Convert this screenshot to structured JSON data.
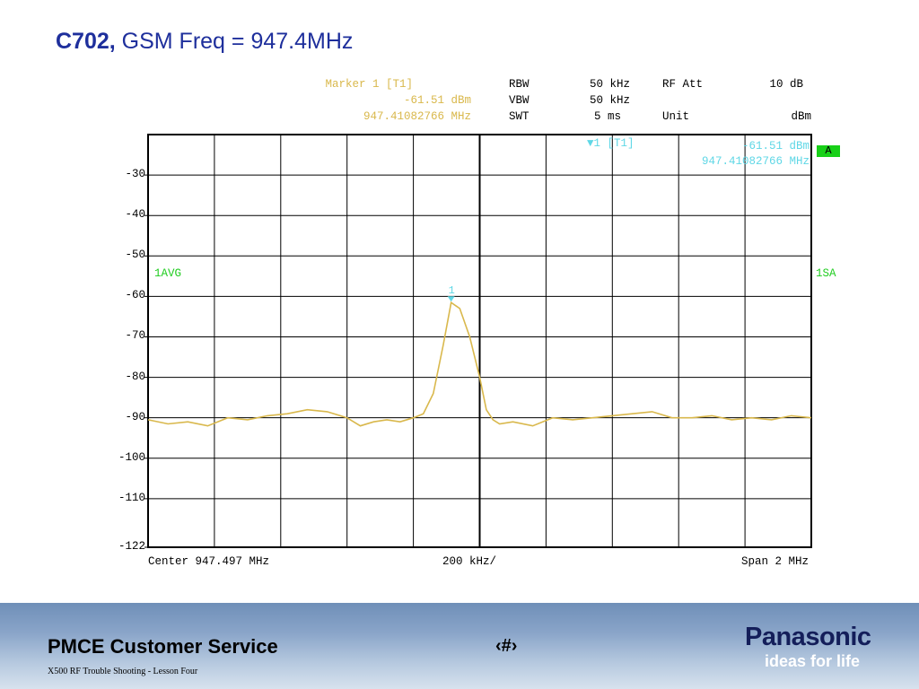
{
  "slide": {
    "title_bold": "C702,",
    "title_rest": " GSM Freq = 947.4MHz",
    "footer_service": "PMCE Customer Service",
    "footer_page": "‹#›",
    "footer_sub": "X500 RF Trouble Shooting  -  Lesson Four",
    "brand": "Panasonic",
    "tagline": "ideas for life"
  },
  "header": {
    "marker_title": "Marker 1 [T1]",
    "marker_level": "-61.51 dBm",
    "marker_freq": "947.41082766 MHz",
    "rbw_label": "RBW",
    "rbw_value": "50 kHz",
    "vbw_label": "VBW",
    "vbw_value": "50 kHz",
    "swt_label": "SWT",
    "swt_value": "5 ms",
    "rfatt_label": "RF Att",
    "rfatt_value": "10 dB",
    "unit_label": "Unit",
    "unit_value": "dBm"
  },
  "overlay": {
    "marker_tag": "1 [T1]",
    "marker_level": "-61.51 dBm",
    "marker_freq": "947.41082766 MHz",
    "a_box": "A",
    "left_note": "1AVG",
    "right_note": "1SA",
    "peak_label": "1"
  },
  "bottom": {
    "center": "Center 947.497 MHz",
    "div": "200 kHz/",
    "span": "Span 2 MHz"
  },
  "colors": {
    "trace": "#d9b84c",
    "marker": "#5fd7e6",
    "note": "#1fcc1f",
    "title": "#1e2f9c"
  },
  "chart_data": {
    "type": "line",
    "title": "",
    "xlabel": "",
    "ylabel": "",
    "xlim": [
      946.497,
      948.497
    ],
    "ylim": [
      -122,
      -20
    ],
    "grid": true,
    "y_ticks": [
      "-30",
      "-40",
      "-50",
      "-60",
      "-70",
      "-80",
      "-90",
      "-100",
      "-110",
      "-122"
    ],
    "y_tick_values": [
      -30,
      -40,
      -50,
      -60,
      -70,
      -80,
      -90,
      -100,
      -110,
      -122
    ],
    "marker": {
      "x": 947.41082766,
      "y": -61.51
    },
    "series": [
      {
        "x": [
          946.497,
          946.557,
          946.617,
          946.677,
          946.737,
          946.797,
          946.857,
          946.917,
          946.977,
          947.037,
          947.097,
          947.137,
          947.177,
          947.217,
          947.257,
          947.297,
          947.327,
          947.357,
          947.387,
          947.411,
          947.437,
          947.467,
          947.497,
          947.517,
          947.537,
          947.557,
          947.597,
          947.657,
          947.717,
          947.777,
          947.837,
          947.897,
          947.957,
          948.017,
          948.077,
          948.137,
          948.197,
          948.257,
          948.317,
          948.377,
          948.437,
          948.497
        ],
        "values": [
          -90.5,
          -91.5,
          -91,
          -92,
          -90,
          -90.5,
          -89.5,
          -89,
          -88,
          -88.5,
          -90,
          -92,
          -91,
          -90.5,
          -91,
          -90,
          -89,
          -84,
          -72,
          -61.5,
          -63,
          -70,
          -80,
          -88,
          -90.5,
          -91.5,
          -91,
          -92,
          -90,
          -90.5,
          -90,
          -89.5,
          -89,
          -88.5,
          -90,
          -90,
          -89.5,
          -90.5,
          -90,
          -90.5,
          -89.5,
          -90
        ]
      }
    ]
  }
}
